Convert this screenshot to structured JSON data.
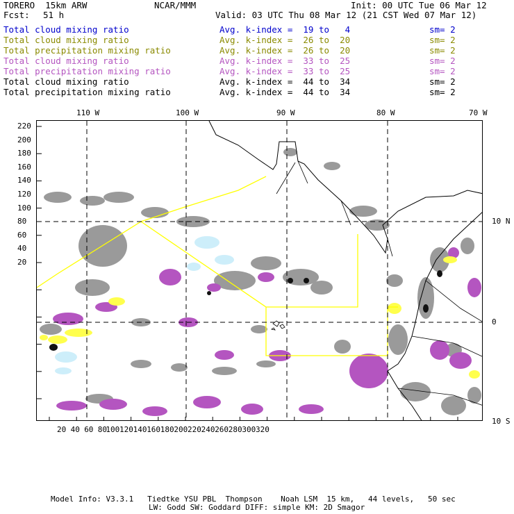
{
  "header": {
    "model": "TORERO  15km ARW",
    "org": "NCAR/MMM",
    "init": "Init: 00 UTC Tue 06 Mar 12",
    "fcst_label": "Fcst:",
    "fcst_value": "51 h",
    "valid": "Valid: 03 UTC Thu 08 Mar 12 (21 CST Wed 07 Mar 12)"
  },
  "legend": [
    {
      "field": "Total cloud mixing ratio",
      "kindex": "Avg. k-index =  19 to   4",
      "sm": "sm= 2",
      "color": "#0000cc"
    },
    {
      "field": "Total cloud mixing ratio",
      "kindex": "Avg. k-index =  26 to  20",
      "sm": "sm= 2",
      "color": "#8a8a00"
    },
    {
      "field": "Total precipitation mixing ratio",
      "kindex": "Avg. k-index =  26 to  20",
      "sm": "sm= 2",
      "color": "#8a8a00"
    },
    {
      "field": "Total cloud mixing ratio",
      "kindex": "Avg. k-index =  33 to  25",
      "sm": "sm= 2",
      "color": "#b455c0"
    },
    {
      "field": "Total precipitation mixing ratio",
      "kindex": "Avg. k-index =  33 to  25",
      "sm": "sm= 2",
      "color": "#b455c0"
    },
    {
      "field": "Total cloud mixing ratio",
      "kindex": "Avg. k-index =  44 to  34",
      "sm": "sm= 2",
      "color": "#000000"
    },
    {
      "field": "Total precipitation mixing ratio",
      "kindex": "Avg. k-index =  44 to  34",
      "sm": "sm= 2",
      "color": "#000000"
    }
  ],
  "axes": {
    "top_lon": [
      "110 W",
      "100 W",
      "90 W",
      "80 W",
      "70 W"
    ],
    "right_lat": [
      "10 N",
      "0",
      "10 S"
    ],
    "left_y": [
      "220",
      "200",
      "180",
      "160",
      "140",
      "120",
      "100",
      "80",
      "60",
      "40",
      "20"
    ],
    "bottom_x": [
      "20",
      "40",
      "60",
      "80",
      "100",
      "120",
      "140",
      "160",
      "180",
      "200",
      "220",
      "240",
      "260",
      "280",
      "300",
      "320"
    ]
  },
  "colors": {
    "cloud_gray": "#9a9a9a",
    "precip_purple": "#b455c0",
    "light_blue": "#cdeefa",
    "yellow": "#ffff4d",
    "domain_line": "#ffff00"
  },
  "footer": {
    "line1": "Model Info: V3.3.1   Tiedtke YSU PBL  Thompson    Noah LSM  15 km,   44 levels,   50 sec",
    "line2": "LW: Godd SW: Goddard DIFF: simple KM: 2D Smagor"
  }
}
